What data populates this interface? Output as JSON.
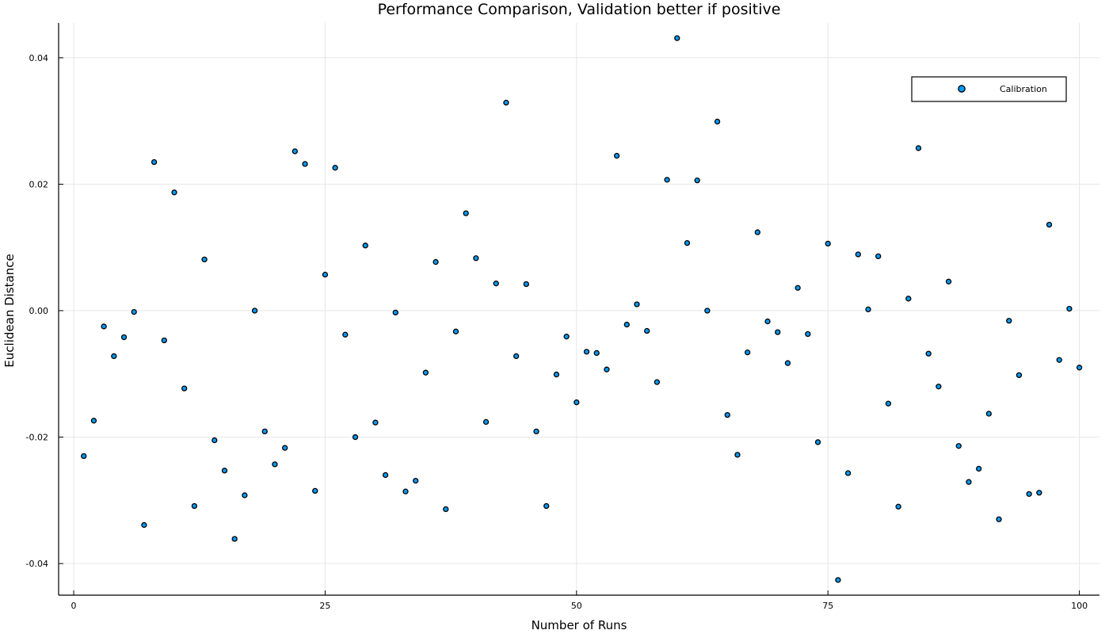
{
  "chart_data": {
    "type": "scatter",
    "title": "Performance Comparison, Validation better if positive",
    "xlabel": "Number of Runs",
    "ylabel": "Euclidean Distance",
    "xlim": [
      -1.5,
      102
    ],
    "ylim": [
      -0.045,
      0.0455
    ],
    "xticks": [
      0,
      25,
      50,
      75,
      100
    ],
    "xtick_labels": [
      "0",
      "25",
      "50",
      "75",
      "100"
    ],
    "yticks": [
      -0.04,
      -0.02,
      0.0,
      0.02,
      0.04
    ],
    "ytick_labels": [
      "-0.04",
      "-0.02",
      "0.00",
      "0.02",
      "0.04"
    ],
    "grid": true,
    "legend_position": "top-right",
    "series": [
      {
        "name": "Calibration",
        "color": "#009af9",
        "x": [
          1,
          2,
          3,
          4,
          5,
          6,
          7,
          8,
          9,
          10,
          11,
          12,
          13,
          14,
          15,
          16,
          17,
          18,
          19,
          20,
          21,
          22,
          23,
          24,
          25,
          26,
          27,
          28,
          29,
          30,
          31,
          32,
          33,
          34,
          35,
          36,
          37,
          38,
          39,
          40,
          41,
          42,
          43,
          44,
          45,
          46,
          47,
          48,
          49,
          50,
          51,
          52,
          53,
          54,
          55,
          56,
          57,
          58,
          59,
          60,
          61,
          62,
          63,
          64,
          65,
          66,
          67,
          68,
          69,
          70,
          71,
          72,
          73,
          74,
          75,
          76,
          77,
          78,
          79,
          80,
          81,
          82,
          83,
          84,
          85,
          86,
          87,
          88,
          89,
          90,
          91,
          92,
          93,
          94,
          95,
          96,
          97,
          98,
          99,
          100
        ],
        "y": [
          -0.023,
          -0.0174,
          -0.0025,
          -0.0072,
          -0.0042,
          -0.0002,
          -0.0339,
          0.0235,
          -0.0047,
          0.0187,
          -0.0123,
          -0.0309,
          0.0081,
          -0.0205,
          -0.0253,
          -0.0361,
          -0.0292,
          0.0,
          -0.0191,
          -0.0243,
          -0.0217,
          0.0252,
          0.0232,
          -0.0285,
          0.0057,
          0.0226,
          -0.0038,
          -0.02,
          0.0103,
          -0.0177,
          -0.026,
          -0.0003,
          -0.0286,
          -0.0269,
          -0.0098,
          0.0077,
          -0.0314,
          -0.0033,
          0.0154,
          0.0083,
          -0.0176,
          0.0043,
          0.0329,
          -0.0072,
          0.0042,
          -0.0191,
          -0.0309,
          -0.0101,
          -0.0041,
          -0.0145,
          -0.0065,
          -0.0067,
          -0.0093,
          0.0245,
          -0.0022,
          0.001,
          -0.0032,
          -0.0113,
          0.0207,
          0.0431,
          0.0107,
          0.0206,
          0.0,
          0.0299,
          -0.0165,
          -0.0228,
          -0.0066,
          0.0124,
          -0.0017,
          -0.0034,
          -0.0083,
          0.0036,
          -0.0037,
          -0.0208,
          0.0106,
          -0.0426,
          -0.0257,
          0.0089,
          0.0002,
          0.0086,
          -0.0147,
          -0.031,
          0.0019,
          0.0257,
          -0.0068,
          -0.012,
          0.0046,
          -0.0214,
          -0.0271,
          -0.025,
          -0.0163,
          -0.033,
          -0.0016,
          -0.0102,
          -0.029,
          -0.0288,
          0.0136,
          -0.0078,
          0.0003,
          -0.009
        ]
      }
    ]
  }
}
